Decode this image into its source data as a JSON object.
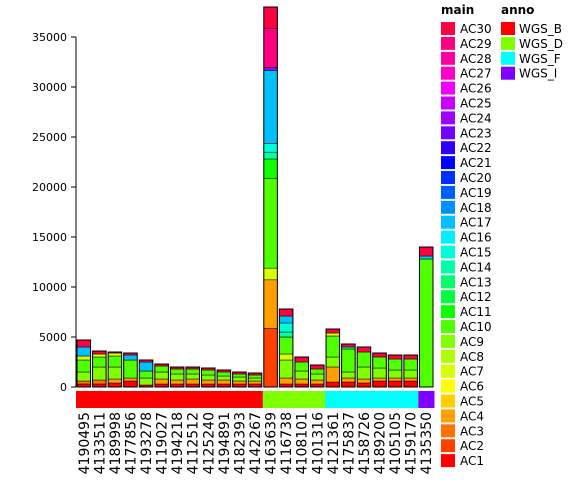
{
  "chart_data": {
    "type": "bar",
    "stacked": true,
    "title": "",
    "xlabel": "",
    "ylabel": "",
    "ylim": [
      0,
      38000
    ],
    "yticks": [
      0,
      5000,
      10000,
      15000,
      20000,
      25000,
      30000,
      35000
    ],
    "categories": [
      "4190495",
      "4133511",
      "4189998",
      "4177856",
      "4193278",
      "4119027",
      "4194218",
      "4112512",
      "4125240",
      "4194891",
      "4182393",
      "4142267",
      "4163639",
      "4116738",
      "4108101",
      "4101316",
      "4121361",
      "4175837",
      "4158726",
      "4189200",
      "4105105",
      "4159170",
      "4135350"
    ],
    "totals": [
      4700,
      3600,
      3500,
      3400,
      2700,
      2300,
      2000,
      2000,
      1900,
      1700,
      1500,
      1400,
      38000,
      7800,
      3000,
      2200,
      5800,
      4300,
      4000,
      3400,
      3200,
      3200,
      14000
    ],
    "anno_values": [
      "WGS_B",
      "WGS_B",
      "WGS_B",
      "WGS_B",
      "WGS_B",
      "WGS_B",
      "WGS_B",
      "WGS_B",
      "WGS_B",
      "WGS_B",
      "WGS_B",
      "WGS_B",
      "WGS_D",
      "WGS_D",
      "WGS_D",
      "WGS_D",
      "WGS_F",
      "WGS_F",
      "WGS_F",
      "WGS_F",
      "WGS_F",
      "WGS_F",
      "WGS_I"
    ],
    "stack_segments": [
      [
        {
          "s": "AC1",
          "v": 300
        },
        {
          "s": "AC3",
          "v": 300
        },
        {
          "s": "AC9",
          "v": 900
        },
        {
          "s": "AC10",
          "v": 1200
        },
        {
          "s": "AC7",
          "v": 400
        },
        {
          "s": "AC17",
          "v": 900
        },
        {
          "s": "AC30",
          "v": 700
        }
      ],
      [
        {
          "s": "AC1",
          "v": 300
        },
        {
          "s": "AC3",
          "v": 400
        },
        {
          "s": "AC9",
          "v": 1300
        },
        {
          "s": "AC10",
          "v": 1000
        },
        {
          "s": "AC7",
          "v": 300
        },
        {
          "s": "AC30",
          "v": 300
        }
      ],
      [
        {
          "s": "AC1",
          "v": 400
        },
        {
          "s": "AC4",
          "v": 400
        },
        {
          "s": "AC9",
          "v": 1200
        },
        {
          "s": "AC10",
          "v": 1100
        },
        {
          "s": "AC7",
          "v": 300
        },
        {
          "s": "AC30",
          "v": 100
        }
      ],
      [
        {
          "s": "AC1",
          "v": 600
        },
        {
          "s": "AC4",
          "v": 300
        },
        {
          "s": "AC10",
          "v": 1800
        },
        {
          "s": "AC17",
          "v": 500
        },
        {
          "s": "AC30",
          "v": 200
        }
      ],
      [
        {
          "s": "AC1",
          "v": 200
        },
        {
          "s": "AC9",
          "v": 700
        },
        {
          "s": "AC10",
          "v": 700
        },
        {
          "s": "AC17",
          "v": 900
        },
        {
          "s": "AC30",
          "v": 200
        }
      ],
      [
        {
          "s": "AC1",
          "v": 300
        },
        {
          "s": "AC4",
          "v": 500
        },
        {
          "s": "AC9",
          "v": 700
        },
        {
          "s": "AC10",
          "v": 600
        },
        {
          "s": "AC30",
          "v": 200
        }
      ],
      [
        {
          "s": "AC1",
          "v": 300
        },
        {
          "s": "AC4",
          "v": 400
        },
        {
          "s": "AC9",
          "v": 600
        },
        {
          "s": "AC10",
          "v": 500
        },
        {
          "s": "AC30",
          "v": 200
        }
      ],
      [
        {
          "s": "AC1",
          "v": 300
        },
        {
          "s": "AC4",
          "v": 500
        },
        {
          "s": "AC9",
          "v": 500
        },
        {
          "s": "AC10",
          "v": 500
        },
        {
          "s": "AC30",
          "v": 200
        }
      ],
      [
        {
          "s": "AC1",
          "v": 300
        },
        {
          "s": "AC4",
          "v": 400
        },
        {
          "s": "AC9",
          "v": 500
        },
        {
          "s": "AC10",
          "v": 500
        },
        {
          "s": "AC30",
          "v": 200
        }
      ],
      [
        {
          "s": "AC1",
          "v": 300
        },
        {
          "s": "AC4",
          "v": 400
        },
        {
          "s": "AC9",
          "v": 400
        },
        {
          "s": "AC10",
          "v": 400
        },
        {
          "s": "AC30",
          "v": 200
        }
      ],
      [
        {
          "s": "AC1",
          "v": 300
        },
        {
          "s": "AC4",
          "v": 300
        },
        {
          "s": "AC9",
          "v": 400
        },
        {
          "s": "AC10",
          "v": 300
        },
        {
          "s": "AC30",
          "v": 200
        }
      ],
      [
        {
          "s": "AC1",
          "v": 300
        },
        {
          "s": "AC4",
          "v": 300
        },
        {
          "s": "AC9",
          "v": 300
        },
        {
          "s": "AC10",
          "v": 300
        },
        {
          "s": "AC30",
          "v": 200
        }
      ],
      [
        {
          "s": "AC2",
          "v": 6000
        },
        {
          "s": "AC4",
          "v": 5000
        },
        {
          "s": "AC7",
          "v": 1200
        },
        {
          "s": "AC10",
          "v": 9200
        },
        {
          "s": "AC11",
          "v": 2000
        },
        {
          "s": "AC14",
          "v": 700
        },
        {
          "s": "AC15",
          "v": 900
        },
        {
          "s": "AC17",
          "v": 7500
        },
        {
          "s": "AC24",
          "v": 300
        },
        {
          "s": "AC29",
          "v": 4000
        },
        {
          "s": "AC30",
          "v": 2200
        }
      ],
      [
        {
          "s": "AC1",
          "v": 300
        },
        {
          "s": "AC4",
          "v": 600
        },
        {
          "s": "AC9",
          "v": 1800
        },
        {
          "s": "AC7",
          "v": 600
        },
        {
          "s": "AC10",
          "v": 1700
        },
        {
          "s": "AC14",
          "v": 500
        },
        {
          "s": "AC15",
          "v": 900
        },
        {
          "s": "AC17",
          "v": 700
        },
        {
          "s": "AC30",
          "v": 700
        }
      ],
      [
        {
          "s": "AC1",
          "v": 300
        },
        {
          "s": "AC4",
          "v": 500
        },
        {
          "s": "AC9",
          "v": 800
        },
        {
          "s": "AC10",
          "v": 900
        },
        {
          "s": "AC30",
          "v": 500
        }
      ],
      [
        {
          "s": "AC1",
          "v": 300
        },
        {
          "s": "AC4",
          "v": 400
        },
        {
          "s": "AC9",
          "v": 600
        },
        {
          "s": "AC10",
          "v": 500
        },
        {
          "s": "AC30",
          "v": 400
        }
      ],
      [
        {
          "s": "AC1",
          "v": 500
        },
        {
          "s": "AC4",
          "v": 1500
        },
        {
          "s": "AC9",
          "v": 1000
        },
        {
          "s": "AC10",
          "v": 2100
        },
        {
          "s": "AC7",
          "v": 300
        },
        {
          "s": "AC30",
          "v": 400
        }
      ],
      [
        {
          "s": "AC1",
          "v": 500
        },
        {
          "s": "AC4",
          "v": 400
        },
        {
          "s": "AC9",
          "v": 600
        },
        {
          "s": "AC10",
          "v": 2300
        },
        {
          "s": "AC14",
          "v": 200
        },
        {
          "s": "AC30",
          "v": 300
        }
      ],
      [
        {
          "s": "AC1",
          "v": 400
        },
        {
          "s": "AC4",
          "v": 400
        },
        {
          "s": "AC9",
          "v": 1200
        },
        {
          "s": "AC10",
          "v": 1500
        },
        {
          "s": "AC30",
          "v": 500
        }
      ],
      [
        {
          "s": "AC1",
          "v": 600
        },
        {
          "s": "AC4",
          "v": 300
        },
        {
          "s": "AC9",
          "v": 1000
        },
        {
          "s": "AC10",
          "v": 1100
        },
        {
          "s": "AC30",
          "v": 400
        }
      ],
      [
        {
          "s": "AC1",
          "v": 600
        },
        {
          "s": "AC4",
          "v": 300
        },
        {
          "s": "AC9",
          "v": 800
        },
        {
          "s": "AC10",
          "v": 1100
        },
        {
          "s": "AC30",
          "v": 400
        }
      ],
      [
        {
          "s": "AC1",
          "v": 600
        },
        {
          "s": "AC4",
          "v": 300
        },
        {
          "s": "AC9",
          "v": 800
        },
        {
          "s": "AC10",
          "v": 1100
        },
        {
          "s": "AC30",
          "v": 400
        }
      ],
      [
        {
          "s": "AC10",
          "v": 12800
        },
        {
          "s": "AC17",
          "v": 300
        },
        {
          "s": "AC30",
          "v": 900
        }
      ]
    ],
    "series_colors": {
      "AC30": "#FF0040",
      "AC29": "#FF0080",
      "AC28": "#FF00A0",
      "AC27": "#FF00C8",
      "AC26": "#F000FF",
      "AC25": "#C800FF",
      "AC24": "#A000FF",
      "AC23": "#7000FF",
      "AC22": "#3000FF",
      "AC21": "#0000FF",
      "AC20": "#0030FF",
      "AC19": "#0060FF",
      "AC18": "#0090FF",
      "AC17": "#00C0FF",
      "AC16": "#00F0FF",
      "AC15": "#00FFD8",
      "AC14": "#00FFA8",
      "AC13": "#00FF70",
      "AC12": "#00FF40",
      "AC11": "#10FF00",
      "AC10": "#50FF00",
      "AC9": "#80FF00",
      "AC8": "#B0FF00",
      "AC7": "#D8FF00",
      "AC6": "#FFFF00",
      "AC5": "#FFD000",
      "AC4": "#FFA000",
      "AC3": "#FF7000",
      "AC2": "#FF4000",
      "AC1": "#FF0000"
    },
    "legend_main": {
      "title": "main",
      "entries": [
        "AC30",
        "AC29",
        "AC28",
        "AC27",
        "AC26",
        "AC25",
        "AC24",
        "AC23",
        "AC22",
        "AC21",
        "AC20",
        "AC19",
        "AC18",
        "AC17",
        "AC16",
        "AC15",
        "AC14",
        "AC13",
        "AC12",
        "AC11",
        "AC10",
        "AC9",
        "AC8",
        "AC7",
        "AC6",
        "AC5",
        "AC4",
        "AC3",
        "AC2",
        "AC1"
      ]
    },
    "legend_anno": {
      "title": "anno",
      "entries": [
        {
          "label": "WGS_B",
          "color": "#FF0000"
        },
        {
          "label": "WGS_D",
          "color": "#80FF00"
        },
        {
          "label": "WGS_F",
          "color": "#00FFFF"
        },
        {
          "label": "WGS_I",
          "color": "#8000FF"
        }
      ]
    }
  }
}
